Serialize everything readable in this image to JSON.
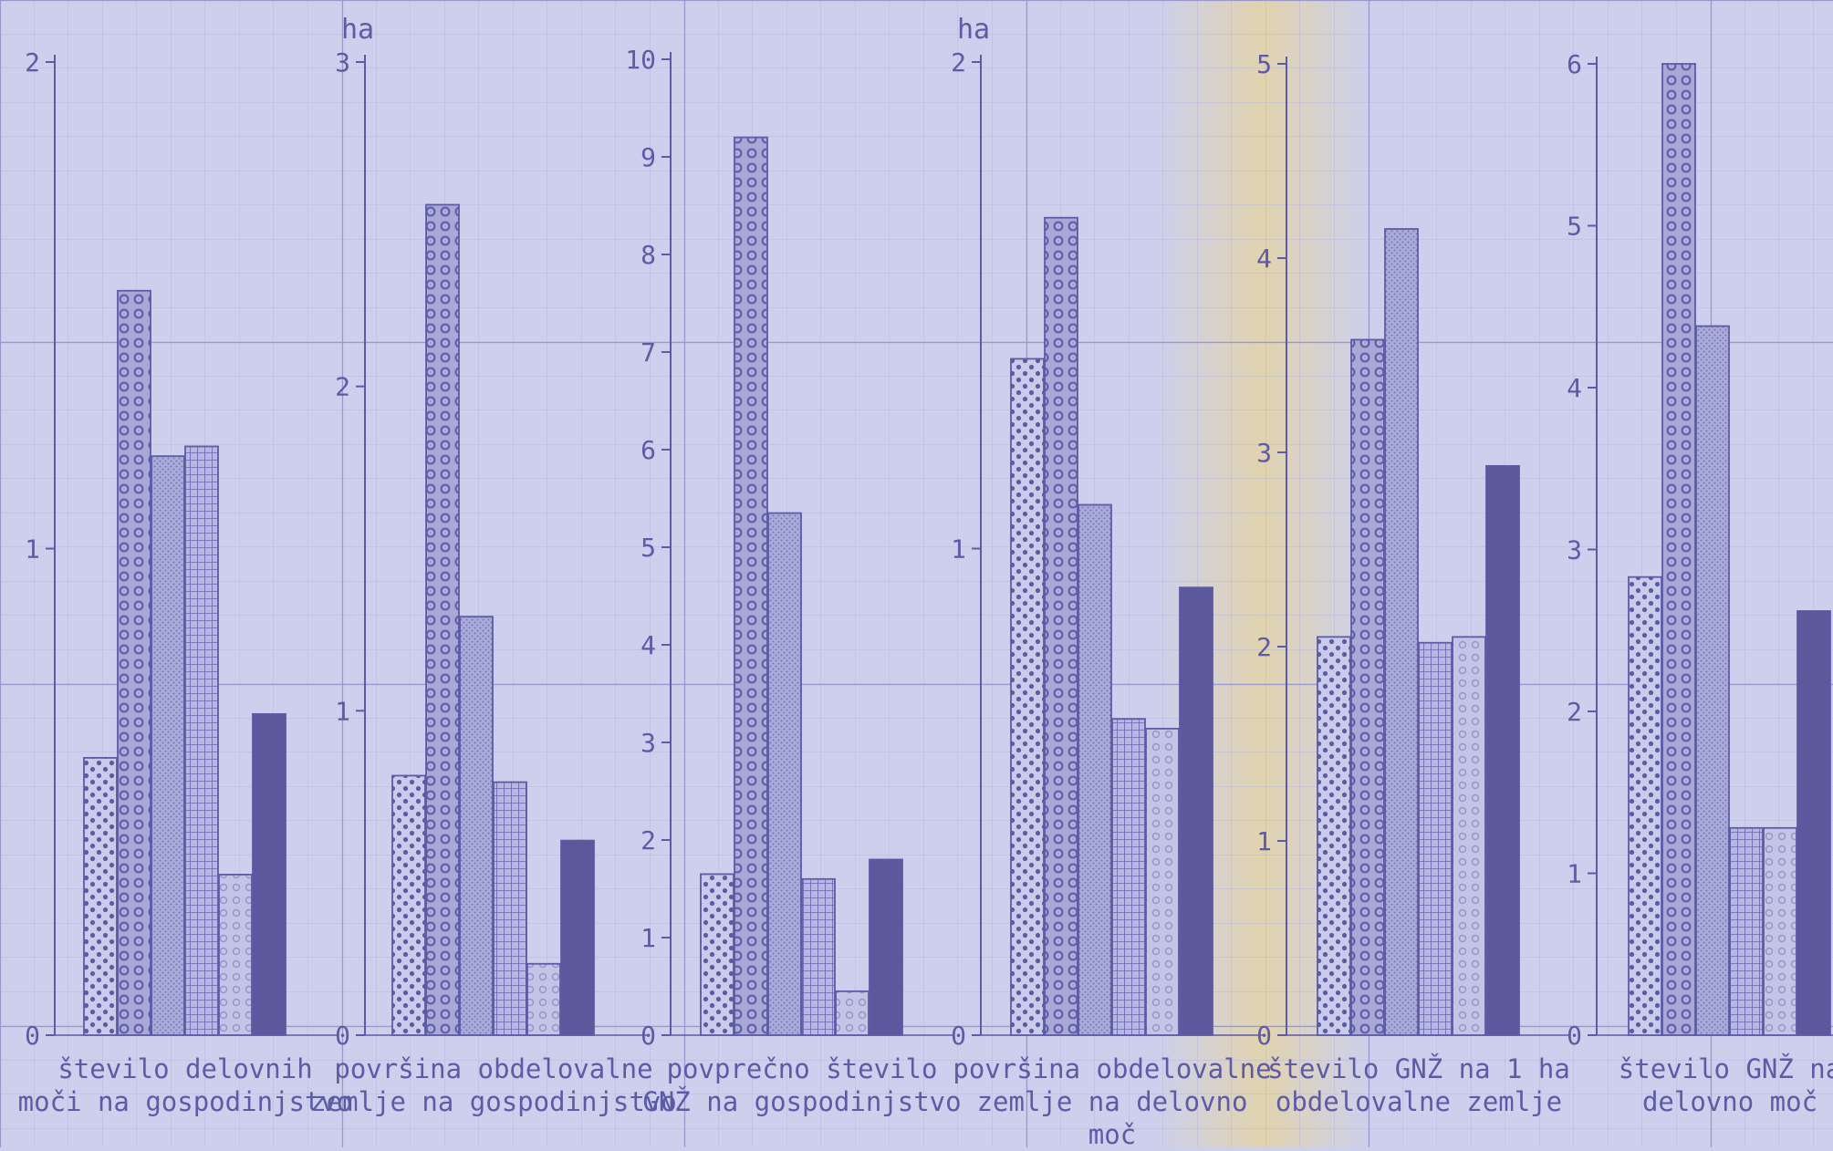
{
  "colors": {
    "paper": "#cdd0ec",
    "grid_minor": "#b6b8de",
    "grid_major": "#9998cc",
    "ink": "#5d5aa6",
    "solid": "#5b589e",
    "highlight": "#e8d49a"
  },
  "chart_data": [
    {
      "type": "bar",
      "title": "",
      "xlabel": "število delovnih moči na gospodinjstvo",
      "label_lines": [
        "število delovnih",
        "moči na gospodinjstvo"
      ],
      "unit": "",
      "ylim": [
        0,
        2
      ],
      "yticks": [
        0,
        1,
        2
      ],
      "series": [
        {
          "pattern": "dots",
          "values": [
            0.57
          ]
        },
        {
          "pattern": "circles",
          "values": [
            1.53
          ]
        },
        {
          "pattern": "stipple",
          "values": [
            1.19
          ]
        },
        {
          "pattern": "grid",
          "values": [
            1.21
          ]
        },
        {
          "pattern": "light-circles",
          "values": [
            0.33
          ]
        },
        {
          "pattern": "solid",
          "values": [
            0.66
          ]
        }
      ]
    },
    {
      "type": "bar",
      "title": "",
      "xlabel": "površina obdelovalne zemlje na gospodinjstvo",
      "label_lines": [
        "površina obdelovalne",
        "zemlje na gospodinjstvo"
      ],
      "unit": "ha",
      "ylim": [
        0,
        3
      ],
      "yticks": [
        0,
        1,
        2,
        3
      ],
      "series": [
        {
          "pattern": "dots",
          "values": [
            0.8
          ]
        },
        {
          "pattern": "circles",
          "values": [
            2.56
          ]
        },
        {
          "pattern": "stipple",
          "values": [
            1.29
          ]
        },
        {
          "pattern": "grid",
          "values": [
            0.78
          ]
        },
        {
          "pattern": "light-circles",
          "values": [
            0.22
          ]
        },
        {
          "pattern": "solid",
          "values": [
            0.6
          ]
        }
      ]
    },
    {
      "type": "bar",
      "title": "",
      "xlabel": "povprečno število GNŽ na gospodinjstvo",
      "label_lines": [
        "povprečno število",
        "GNŽ na gospodinjstvo"
      ],
      "unit": "",
      "ylim": [
        0,
        10
      ],
      "yticks": [
        0,
        1,
        2,
        3,
        4,
        5,
        6,
        7,
        8,
        9,
        10
      ],
      "series": [
        {
          "pattern": "dots",
          "values": [
            1.65
          ]
        },
        {
          "pattern": "circles",
          "values": [
            9.2
          ]
        },
        {
          "pattern": "stipple",
          "values": [
            5.35
          ]
        },
        {
          "pattern": "grid",
          "values": [
            1.6
          ]
        },
        {
          "pattern": "light-circles",
          "values": [
            0.45
          ]
        },
        {
          "pattern": "solid",
          "values": [
            1.8
          ]
        }
      ]
    },
    {
      "type": "bar",
      "title": "",
      "xlabel": "površina obdelovalne zemlje na delovno moč",
      "label_lines": [
        "površina obdelovalne",
        "zemlje na delovno",
        "moč"
      ],
      "unit": "ha",
      "ylim": [
        0,
        2
      ],
      "yticks": [
        0,
        1,
        2
      ],
      "series": [
        {
          "pattern": "dots",
          "values": [
            1.39
          ]
        },
        {
          "pattern": "circles",
          "values": [
            1.68
          ]
        },
        {
          "pattern": "stipple",
          "values": [
            1.09
          ]
        },
        {
          "pattern": "grid",
          "values": [
            0.65
          ]
        },
        {
          "pattern": "light-circles",
          "values": [
            0.63
          ]
        },
        {
          "pattern": "solid",
          "values": [
            0.92
          ]
        }
      ]
    },
    {
      "type": "bar",
      "title": "",
      "xlabel": "število GNŽ na 1 ha obdelovalne zemlje",
      "label_lines": [
        "število GNŽ na 1 ha",
        "obdelovalne zemlje"
      ],
      "unit": "",
      "ylim": [
        0,
        5
      ],
      "yticks": [
        0,
        1,
        2,
        3,
        4,
        5
      ],
      "series": [
        {
          "pattern": "dots",
          "values": [
            2.05
          ]
        },
        {
          "pattern": "circles",
          "values": [
            3.58
          ]
        },
        {
          "pattern": "stipple",
          "values": [
            4.15
          ]
        },
        {
          "pattern": "grid",
          "values": [
            2.02
          ]
        },
        {
          "pattern": "light-circles",
          "values": [
            2.05
          ]
        },
        {
          "pattern": "solid",
          "values": [
            2.93
          ]
        }
      ]
    },
    {
      "type": "bar",
      "title": "",
      "xlabel": "število GNŽ na delovno moč",
      "label_lines": [
        "število GNŽ na",
        "delovno moč"
      ],
      "unit": "",
      "ylim": [
        0,
        6
      ],
      "yticks": [
        0,
        1,
        2,
        3,
        4,
        5,
        6
      ],
      "series": [
        {
          "pattern": "dots",
          "values": [
            2.83
          ]
        },
        {
          "pattern": "circles",
          "values": [
            6.0
          ]
        },
        {
          "pattern": "stipple",
          "values": [
            4.38
          ]
        },
        {
          "pattern": "grid",
          "values": [
            1.28
          ]
        },
        {
          "pattern": "light-circles",
          "values": [
            1.28
          ]
        },
        {
          "pattern": "solid",
          "values": [
            2.62
          ]
        }
      ]
    }
  ]
}
